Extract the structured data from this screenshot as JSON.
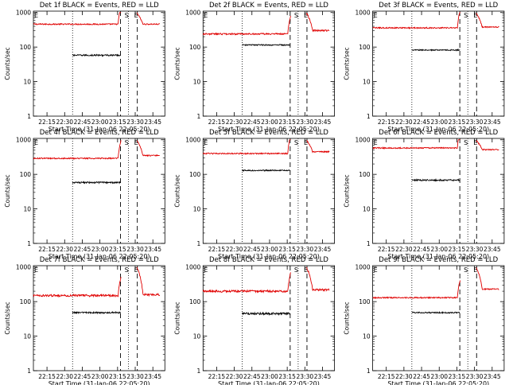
{
  "figure": {
    "background": "#ffffff",
    "colors": {
      "events": "#000000",
      "lld": "#e00000",
      "axes": "#000000"
    },
    "xtick_labels": [
      "22:15",
      "22:30",
      "22:45",
      "23:00",
      "23:15",
      "23:30",
      "23:45"
    ],
    "xlabel": "Start Time (31-Jan-06 22:05:20)",
    "ylabel": "Counts/sec",
    "ytick_labels": [
      "1",
      "10",
      "100",
      "1000"
    ]
  },
  "chart_data": [
    {
      "type": "line",
      "title": "Det 1f BLACK = Events, RED = LLD",
      "xlabel": "Start Time (31-Jan-06 22:05:20)",
      "ylabel": "Counts/sec",
      "yscale": "log",
      "ylim": [
        1,
        1000
      ],
      "xlim_minutes": [
        22.0,
        82.0
      ],
      "markers": {
        "dotted_min": [
          25.5,
          60.5
        ],
        "dashed_min": [
          55.5,
          66.0
        ],
        "S_min": 58.0,
        "E_min": 64.0
      },
      "series": [
        {
          "name": "LLD",
          "color": "#e00000",
          "start": 1.0,
          "end": 80.0,
          "level": 460,
          "peak": 1000,
          "post_level": 460,
          "noise": 0.04
        },
        {
          "name": "Events",
          "color": "#000000",
          "start": 25.5,
          "end": 55.5,
          "level": 58,
          "noise": 0.05
        }
      ]
    },
    {
      "type": "line",
      "title": "Det 2f BLACK = Events, RED = LLD",
      "xlabel": "Start Time (31-Jan-06 22:05:20)",
      "ylabel": "Counts/sec",
      "yscale": "log",
      "ylim": [
        1,
        1000
      ],
      "xlim_minutes": [
        22.0,
        82.0
      ],
      "markers": {
        "dotted_min": [
          25.5,
          60.5
        ],
        "dashed_min": [
          55.5,
          66.0
        ],
        "S_min": 58.0,
        "E_min": 64.0
      },
      "series": [
        {
          "name": "LLD",
          "color": "#e00000",
          "start": 1.0,
          "end": 80.0,
          "level": 240,
          "peak": 1000,
          "post_level": 300,
          "noise": 0.05
        },
        {
          "name": "Events",
          "color": "#000000",
          "start": 25.5,
          "end": 55.5,
          "level": 115,
          "noise": 0.04
        }
      ]
    },
    {
      "type": "line",
      "title": "Det 3f BLACK = Events, RED = LLD",
      "xlabel": "Start Time (31-Jan-06 22:05:20)",
      "ylabel": "Counts/sec",
      "yscale": "log",
      "ylim": [
        1,
        1000
      ],
      "xlim_minutes": [
        22.0,
        82.0
      ],
      "markers": {
        "dotted_min": [
          25.5,
          60.5
        ],
        "dashed_min": [
          55.5,
          66.0
        ],
        "S_min": 58.0,
        "E_min": 64.0
      },
      "series": [
        {
          "name": "LLD",
          "color": "#e00000",
          "start": 1.0,
          "end": 80.0,
          "level": 360,
          "peak": 1000,
          "post_level": 380,
          "noise": 0.04
        },
        {
          "name": "Events",
          "color": "#000000",
          "start": 25.5,
          "end": 55.5,
          "level": 82,
          "noise": 0.04
        }
      ]
    },
    {
      "type": "line",
      "title": "Det 4f BLACK = Events, RED = LLD",
      "xlabel": "Start Time (31-Jan-06 22:05:20)",
      "ylabel": "Counts/sec",
      "yscale": "log",
      "ylim": [
        1,
        1000
      ],
      "xlim_minutes": [
        22.0,
        82.0
      ],
      "markers": {
        "dotted_min": [
          25.5,
          60.5
        ],
        "dashed_min": [
          55.5,
          66.0
        ],
        "S_min": 58.0,
        "E_min": 64.0
      },
      "series": [
        {
          "name": "LLD",
          "color": "#e00000",
          "start": 1.0,
          "end": 80.0,
          "level": 290,
          "peak": 1000,
          "post_level": 350,
          "noise": 0.04
        },
        {
          "name": "Events",
          "color": "#000000",
          "start": 25.5,
          "end": 55.5,
          "level": 58,
          "noise": 0.05
        }
      ]
    },
    {
      "type": "line",
      "title": "Det 5f BLACK = Events, RED = LLD",
      "xlabel": "Start Time (31-Jan-06 22:05:20)",
      "ylabel": "Counts/sec",
      "yscale": "log",
      "ylim": [
        1,
        1000
      ],
      "xlim_minutes": [
        22.0,
        82.0
      ],
      "markers": {
        "dotted_min": [
          25.5,
          60.5
        ],
        "dashed_min": [
          55.5,
          66.0
        ],
        "S_min": 58.0,
        "E_min": 64.0
      },
      "series": [
        {
          "name": "LLD",
          "color": "#e00000",
          "start": 1.0,
          "end": 80.0,
          "level": 400,
          "peak": 1000,
          "post_level": 450,
          "noise": 0.04
        },
        {
          "name": "Events",
          "color": "#000000",
          "start": 25.5,
          "end": 55.5,
          "level": 130,
          "noise": 0.04
        }
      ]
    },
    {
      "type": "line",
      "title": "Det 6f BLACK = Events, RED = LLD",
      "xlabel": "Start Time (31-Jan-06 22:05:20)",
      "ylabel": "Counts/sec",
      "yscale": "log",
      "ylim": [
        1,
        1000
      ],
      "xlim_minutes": [
        22.0,
        82.0
      ],
      "markers": {
        "dotted_min": [
          25.5,
          60.5
        ],
        "dashed_min": [
          55.5,
          66.0
        ],
        "S_min": 58.0,
        "E_min": 64.0
      },
      "series": [
        {
          "name": "LLD",
          "color": "#e00000",
          "start": 1.0,
          "end": 80.0,
          "level": 580,
          "peak": 1000,
          "post_level": 520,
          "noise": 0.04
        },
        {
          "name": "Events",
          "color": "#000000",
          "start": 25.5,
          "end": 55.5,
          "level": 68,
          "noise": 0.05
        }
      ]
    },
    {
      "type": "line",
      "title": "Det 7f BLACK = Events, RED = LLD",
      "xlabel": "Start Time (31-Jan-06 22:05:20)",
      "ylabel": "Counts/sec",
      "yscale": "log",
      "ylim": [
        1,
        1000
      ],
      "xlim_minutes": [
        22.0,
        82.0
      ],
      "markers": {
        "dotted_min": [
          25.5,
          60.5
        ],
        "dashed_min": [
          55.5,
          66.0
        ],
        "S_min": 58.0,
        "E_min": 64.0
      },
      "series": [
        {
          "name": "LLD",
          "color": "#e00000",
          "start": 1.0,
          "end": 80.0,
          "level": 150,
          "peak": 1000,
          "post_level": 160,
          "noise": 0.07
        },
        {
          "name": "Events",
          "color": "#000000",
          "start": 25.5,
          "end": 55.5,
          "level": 48,
          "noise": 0.05
        }
      ]
    },
    {
      "type": "line",
      "title": "Det 8f BLACK = Events, RED = LLD",
      "xlabel": "Start Time (31-Jan-06 22:05:20)",
      "ylabel": "Counts/sec",
      "yscale": "log",
      "ylim": [
        1,
        1000
      ],
      "xlim_minutes": [
        22.0,
        82.0
      ],
      "markers": {
        "dotted_min": [
          25.5,
          60.5
        ],
        "dashed_min": [
          55.5,
          66.0
        ],
        "S_min": 58.0,
        "E_min": 64.0
      },
      "series": [
        {
          "name": "LLD",
          "color": "#e00000",
          "start": 1.0,
          "end": 80.0,
          "level": 200,
          "peak": 1000,
          "post_level": 220,
          "noise": 0.07
        },
        {
          "name": "Events",
          "color": "#000000",
          "start": 25.5,
          "end": 55.5,
          "level": 45,
          "noise": 0.07
        }
      ]
    },
    {
      "type": "line",
      "title": "Det 9f BLACK = Events, RED = LLD",
      "xlabel": "Start Time (31-Jan-06 22:05:20)",
      "ylabel": "Counts/sec",
      "yscale": "log",
      "ylim": [
        1,
        1000
      ],
      "xlim_minutes": [
        22.0,
        82.0
      ],
      "markers": {
        "dotted_min": [
          25.5,
          60.5
        ],
        "dashed_min": [
          55.5,
          66.0
        ],
        "S_min": 58.0,
        "E_min": 64.0
      },
      "series": [
        {
          "name": "LLD",
          "color": "#e00000",
          "start": 1.0,
          "end": 80.0,
          "level": 130,
          "peak": 1000,
          "post_level": 230,
          "noise": 0.04
        },
        {
          "name": "Events",
          "color": "#000000",
          "start": 25.5,
          "end": 55.5,
          "level": 48,
          "noise": 0.04
        }
      ]
    }
  ]
}
